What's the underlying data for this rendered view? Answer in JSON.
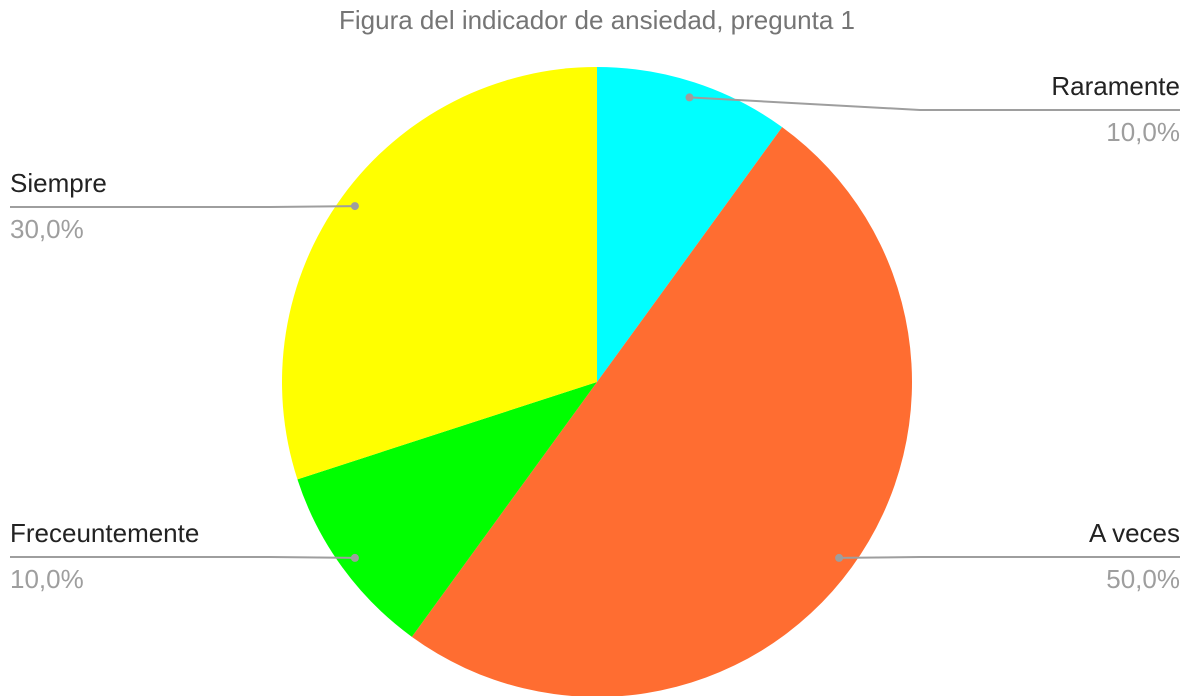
{
  "chart_data": {
    "type": "pie",
    "title": "Figura del indicador de ansiedad,  pregunta 1",
    "categories": [
      "Raramente",
      "A veces",
      "Freceuntemente",
      "Siempre"
    ],
    "values": [
      10,
      50,
      10,
      30
    ],
    "value_labels": [
      "10,0%",
      "50,0%",
      "10,0%",
      "30,0%"
    ],
    "colors": [
      "#00ffff",
      "#ff6d31",
      "#00ff00",
      "#ffff00"
    ]
  }
}
